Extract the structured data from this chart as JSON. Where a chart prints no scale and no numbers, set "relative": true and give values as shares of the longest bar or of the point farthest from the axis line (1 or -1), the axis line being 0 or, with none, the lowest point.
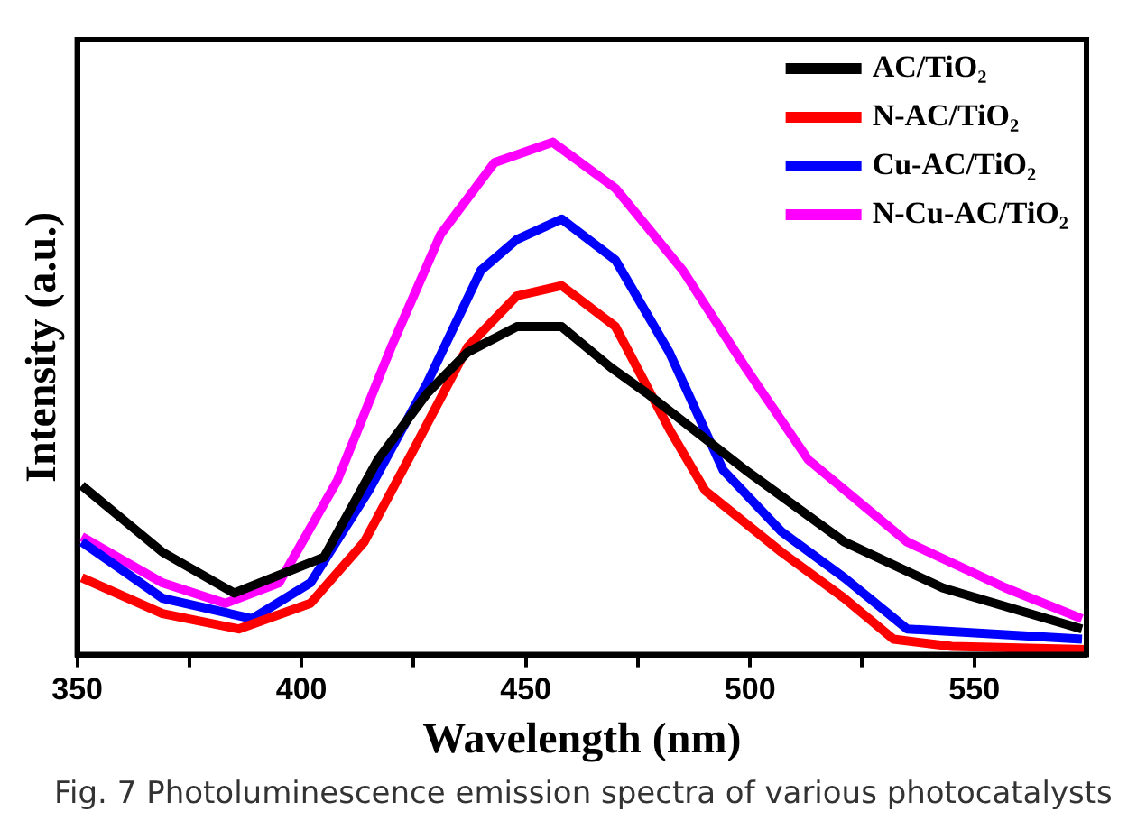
{
  "chart_data": {
    "type": "line",
    "relative": true,
    "xlabel": "Wavelength (nm)",
    "ylabel": "Intensity (a.u.)",
    "xlim": [
      350,
      575
    ],
    "xticks": [
      350,
      {
        "value": 375,
        "label": null
      },
      400,
      {
        "value": 425,
        "label": null
      },
      450,
      {
        "value": 475,
        "label": null
      },
      500,
      {
        "value": 525,
        "label": null
      },
      550
    ],
    "legend": "top right",
    "marker": "none",
    "line_style": "solid",
    "grid": false,
    "annotations": [
      "Fig. 7 Photoluminescence emission spectra of various photocatalysts"
    ],
    "series": [
      {
        "name": "AC/TiO₂",
        "color": "#000000",
        "x": [
          351,
          369,
          385,
          405,
          417,
          428,
          437,
          448,
          458,
          469,
          477,
          499,
          521,
          543,
          574
        ],
        "values": [
          0.33,
          0.2,
          0.12,
          0.19,
          0.38,
          0.51,
          0.59,
          0.64,
          0.64,
          0.56,
          0.51,
          0.36,
          0.22,
          0.13,
          0.05
        ]
      },
      {
        "name": "N-AC/TiO₂",
        "color": "#ff0000",
        "x": [
          351,
          369,
          386,
          402,
          414,
          425,
          437,
          448,
          458,
          470,
          482,
          490,
          507,
          521,
          532,
          545,
          575
        ],
        "values": [
          0.15,
          0.08,
          0.05,
          0.1,
          0.22,
          0.4,
          0.6,
          0.7,
          0.72,
          0.64,
          0.44,
          0.32,
          0.2,
          0.11,
          0.03,
          0.016,
          0.01
        ]
      },
      {
        "name": "Cu-AC/TiO₂",
        "color": "#0000ff",
        "x": [
          351,
          369,
          389,
          402,
          415,
          428,
          440,
          448,
          458,
          470,
          482,
          494,
          507,
          521,
          535,
          574
        ],
        "values": [
          0.22,
          0.11,
          0.07,
          0.14,
          0.32,
          0.53,
          0.75,
          0.81,
          0.85,
          0.77,
          0.59,
          0.36,
          0.24,
          0.15,
          0.05,
          0.03
        ]
      },
      {
        "name": "N-Cu-AC/TiO₂",
        "color": "#ff00ff",
        "x": [
          351,
          369,
          383,
          395,
          408,
          420,
          431,
          443,
          456,
          470,
          485,
          499,
          513,
          535,
          557,
          574
        ],
        "values": [
          0.23,
          0.14,
          0.1,
          0.14,
          0.34,
          0.6,
          0.82,
          0.96,
          1,
          0.91,
          0.75,
          0.56,
          0.38,
          0.22,
          0.13,
          0.07
        ]
      }
    ]
  }
}
